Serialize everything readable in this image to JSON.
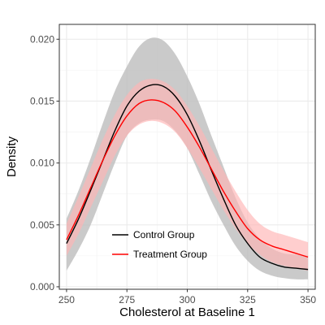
{
  "chart_data": {
    "type": "line",
    "title": "",
    "xlabel": "Cholesterol at Baseline 1",
    "ylabel": "Density",
    "xlim": [
      247,
      353
    ],
    "ylim": [
      -0.0002,
      0.0212
    ],
    "x_ticks": [
      250,
      275,
      300,
      325,
      350
    ],
    "x_tick_labels": [
      "250",
      "275",
      "300",
      "325",
      "350"
    ],
    "y_ticks": [
      0.0,
      0.005,
      0.01,
      0.015,
      0.02
    ],
    "y_tick_labels": [
      "0.000",
      "0.005",
      "0.010",
      "0.015",
      "0.020"
    ],
    "grid": true,
    "legend_position": "inside-bottom-left",
    "series": [
      {
        "name": "Control Group",
        "color": "#000000",
        "band_color": "#bdbdbd",
        "x": [
          250,
          255,
          260,
          265,
          270,
          275,
          280,
          285,
          290,
          295,
          300,
          305,
          310,
          315,
          320,
          325,
          330,
          335,
          340,
          345,
          350
        ],
        "y": [
          0.0035,
          0.0055,
          0.0078,
          0.0102,
          0.0126,
          0.0146,
          0.0158,
          0.0163,
          0.0162,
          0.0154,
          0.0139,
          0.0118,
          0.0094,
          0.0071,
          0.005,
          0.0035,
          0.0024,
          0.0019,
          0.0016,
          0.0015,
          0.0014
        ],
        "y_lower": [
          0.0013,
          0.003,
          0.005,
          0.0075,
          0.01,
          0.0122,
          0.0132,
          0.0135,
          0.0134,
          0.0126,
          0.0112,
          0.0091,
          0.0069,
          0.005,
          0.0033,
          0.0021,
          0.0013,
          0.0009,
          0.0007,
          0.0006,
          0.0006
        ],
        "y_upper": [
          0.0055,
          0.0078,
          0.0104,
          0.0132,
          0.0158,
          0.0178,
          0.0194,
          0.0201,
          0.0199,
          0.0188,
          0.017,
          0.0148,
          0.0122,
          0.0097,
          0.0072,
          0.0052,
          0.0039,
          0.0031,
          0.0027,
          0.0026,
          0.0025
        ]
      },
      {
        "name": "Treatment Group",
        "color": "#ff0000",
        "band_color": "#ffb3b3",
        "x": [
          250,
          255,
          260,
          265,
          270,
          275,
          280,
          285,
          290,
          295,
          300,
          305,
          310,
          315,
          320,
          325,
          330,
          335,
          340,
          345,
          350
        ],
        "y": [
          0.0038,
          0.0058,
          0.008,
          0.0102,
          0.0122,
          0.0138,
          0.0148,
          0.0151,
          0.0149,
          0.0142,
          0.0129,
          0.0113,
          0.0095,
          0.0077,
          0.0061,
          0.0047,
          0.0038,
          0.0033,
          0.003,
          0.0027,
          0.0024
        ],
        "y_lower": [
          0.0025,
          0.0043,
          0.0064,
          0.0085,
          0.0106,
          0.0122,
          0.0131,
          0.0134,
          0.0132,
          0.0125,
          0.0112,
          0.0096,
          0.0079,
          0.0062,
          0.0047,
          0.0035,
          0.0026,
          0.002,
          0.0017,
          0.0015,
          0.0013
        ],
        "y_upper": [
          0.0051,
          0.0073,
          0.0096,
          0.0119,
          0.0139,
          0.0155,
          0.0165,
          0.0168,
          0.0166,
          0.0159,
          0.0146,
          0.013,
          0.0112,
          0.0094,
          0.0077,
          0.0062,
          0.0051,
          0.0045,
          0.0042,
          0.0039,
          0.0036
        ]
      }
    ]
  }
}
